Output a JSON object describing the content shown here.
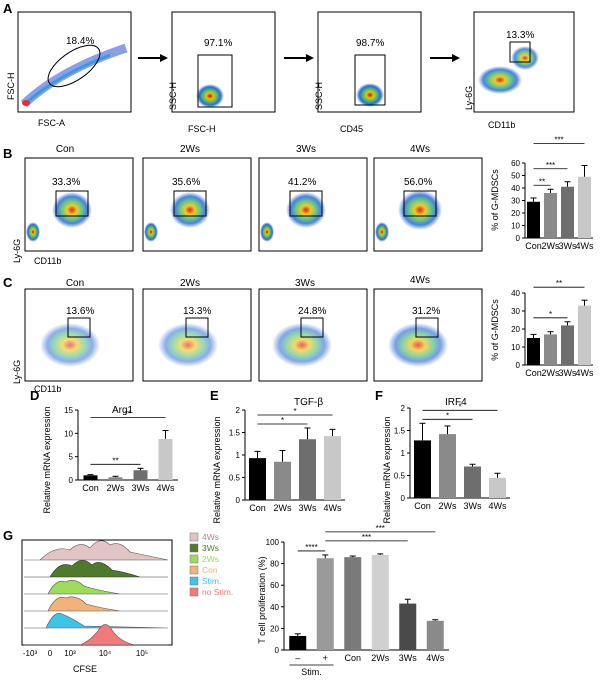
{
  "panel_labels": {
    "A": "A",
    "B": "B",
    "C": "C",
    "D": "D",
    "E": "E",
    "F": "F",
    "G": "G"
  },
  "row_a": {
    "plots": [
      {
        "x_label": "FSC-A",
        "y_label": "FSC-H",
        "gate_pct": "18.4%"
      },
      {
        "x_label": "FSC-H",
        "y_label": "SSC-H",
        "gate_pct": "97.1%"
      },
      {
        "x_label": "CD45",
        "y_label": "SSC-H",
        "gate_pct": "98.7%"
      },
      {
        "x_label": "CD11b",
        "y_label": "Ly-6G",
        "gate_pct": "13.3%"
      }
    ]
  },
  "row_b": {
    "x_label": "CD11b",
    "y_label": "Ly-6G",
    "plots": [
      {
        "title": "Con",
        "pct": "33.3%"
      },
      {
        "title": "2Ws",
        "pct": "35.6%"
      },
      {
        "title": "3Ws",
        "pct": "41.2%"
      },
      {
        "title": "4Ws",
        "pct": "56.0%"
      }
    ]
  },
  "row_c": {
    "x_label": "CD11b",
    "y_label": "Ly-6G",
    "plots": [
      {
        "title": "Con",
        "pct": "13.6%"
      },
      {
        "title": "2Ws",
        "pct": "13.3%"
      },
      {
        "title": "3Ws",
        "pct": "24.8%"
      },
      {
        "title": "4Ws",
        "pct": "31.2%"
      }
    ]
  },
  "row_g_hist": {
    "x_label": "CFSE",
    "x_ticks": [
      "-10³",
      "0",
      "10³",
      "10⁴",
      "10⁵"
    ],
    "legend": [
      {
        "label": "4Ws",
        "color": "#e3c4c4"
      },
      {
        "label": "3Ws",
        "color": "#4f7a2c"
      },
      {
        "label": "2Ws",
        "color": "#9bdc5a"
      },
      {
        "label": "Con",
        "color": "#f2b27a"
      },
      {
        "label": "Stim.",
        "color": "#3cc4e8"
      },
      {
        "label": "no Stim.",
        "color": "#f27a7a"
      }
    ]
  },
  "chart_data": [
    {
      "id": "B",
      "type": "bar",
      "ylabel": "% of G-MDSCs",
      "categories": [
        "Con",
        "2Ws",
        "3Ws",
        "4Ws"
      ],
      "values": [
        29,
        36,
        41,
        49
      ],
      "errors": [
        3,
        3,
        4,
        9
      ],
      "colors": [
        "#000000",
        "#8a8a8a",
        "#6e6e6e",
        "#c8c8c8"
      ],
      "ylim": [
        0,
        60
      ],
      "ticks": [
        0,
        10,
        20,
        30,
        40,
        50,
        60
      ],
      "sig": [
        {
          "from": 0,
          "to": 1,
          "label": "**"
        },
        {
          "from": 0,
          "to": 2,
          "label": "***"
        },
        {
          "from": 0,
          "to": 3,
          "label": "***"
        }
      ]
    },
    {
      "id": "C",
      "type": "bar",
      "ylabel": "% of G-MDSCs",
      "categories": [
        "Con",
        "2Ws",
        "3Ws",
        "4Ws"
      ],
      "values": [
        15,
        17,
        22,
        33
      ],
      "errors": [
        2,
        1.5,
        2,
        3
      ],
      "colors": [
        "#000000",
        "#8a8a8a",
        "#6e6e6e",
        "#c8c8c8"
      ],
      "ylim": [
        0,
        40
      ],
      "ticks": [
        0,
        10,
        20,
        30,
        40
      ],
      "sig": [
        {
          "from": 0,
          "to": 2,
          "label": "*"
        },
        {
          "from": 0,
          "to": 3,
          "label": "**"
        }
      ]
    },
    {
      "id": "D",
      "type": "bar",
      "title": "Arg1",
      "ylabel": "Relative mRNA expression",
      "categories": [
        "Con",
        "2Ws",
        "3Ws",
        "4Ws"
      ],
      "values": [
        1.0,
        0.6,
        2.1,
        8.8
      ],
      "errors": [
        0.15,
        0.2,
        0.4,
        1.8
      ],
      "colors": [
        "#000000",
        "#8a8a8a",
        "#6e6e6e",
        "#c8c8c8"
      ],
      "ylim": [
        0,
        15
      ],
      "ticks": [
        0,
        5,
        10,
        15
      ],
      "sig": [
        {
          "from": 0,
          "to": 2,
          "label": "**"
        },
        {
          "from": 0,
          "to": 3,
          "label": "**"
        }
      ]
    },
    {
      "id": "E",
      "type": "bar",
      "title": "TGF-β",
      "ylabel": "Relative mRNA expression",
      "categories": [
        "Con",
        "2Ws",
        "3Ws",
        "4Ws"
      ],
      "values": [
        0.93,
        0.85,
        1.35,
        1.42
      ],
      "errors": [
        0.15,
        0.25,
        0.25,
        0.15
      ],
      "colors": [
        "#000000",
        "#8a8a8a",
        "#6e6e6e",
        "#c8c8c8"
      ],
      "ylim": [
        0,
        2.0
      ],
      "ticks": [
        0,
        0.5,
        1.0,
        1.5,
        2.0
      ],
      "tick_labels": [
        "0",
        "0.5",
        "1",
        "1.5",
        "2"
      ],
      "sig": [
        {
          "from": 0,
          "to": 2,
          "label": "*"
        },
        {
          "from": 0,
          "to": 3,
          "label": "*"
        }
      ]
    },
    {
      "id": "F",
      "type": "bar",
      "title": "IRF4",
      "ylabel": "Relative mRNA expression",
      "categories": [
        "Con",
        "2Ws",
        "3Ws",
        "4Ws"
      ],
      "values": [
        1.28,
        1.42,
        0.7,
        0.45
      ],
      "errors": [
        0.38,
        0.18,
        0.05,
        0.1
      ],
      "colors": [
        "#000000",
        "#8a8a8a",
        "#6e6e6e",
        "#c8c8c8"
      ],
      "ylim": [
        0,
        2.0
      ],
      "ticks": [
        0,
        0.5,
        1.0,
        1.5,
        2.0
      ],
      "tick_labels": [
        "0",
        "0.5",
        "1",
        "1.5",
        "2"
      ],
      "sig": [
        {
          "from": 0,
          "to": 2,
          "label": "*"
        },
        {
          "from": 0,
          "to": 3,
          "label": "*"
        }
      ]
    },
    {
      "id": "G",
      "type": "bar",
      "ylabel": "T cell proliferation (%)",
      "categories": [
        "–",
        "+",
        "Con",
        "2Ws",
        "3Ws",
        "4Ws"
      ],
      "group_label": "Stim.",
      "values": [
        13,
        85,
        86,
        88,
        43,
        27
      ],
      "errors": [
        2,
        3,
        1,
        1,
        4,
        1
      ],
      "colors": [
        "#000000",
        "#9a9a9a",
        "#7a7a7a",
        "#d0d0d0",
        "#4a4a4a",
        "#8a8a8a"
      ],
      "ylim": [
        0,
        100
      ],
      "ticks": [
        0,
        20,
        40,
        60,
        80,
        100
      ],
      "sig": [
        {
          "from": 0,
          "to": 1,
          "label": "****"
        },
        {
          "from": 1,
          "to": 4,
          "label": "***"
        },
        {
          "from": 1,
          "to": 5,
          "label": "***"
        }
      ]
    }
  ]
}
